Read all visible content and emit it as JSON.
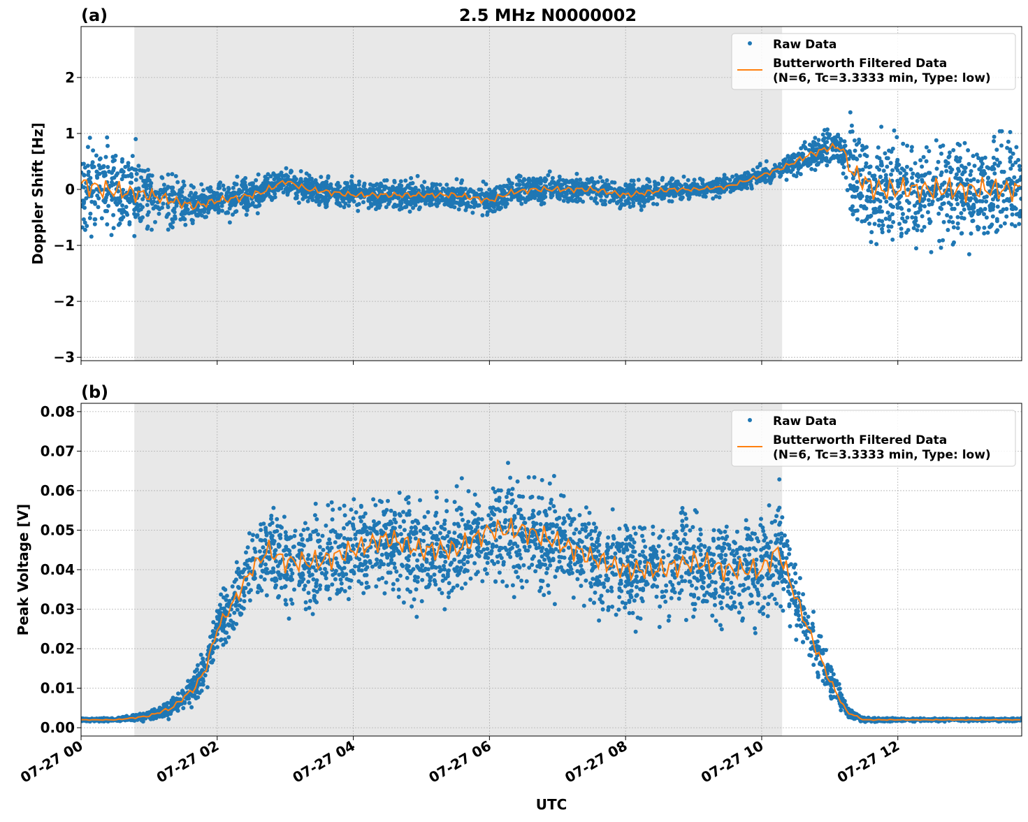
{
  "title": "2.5 MHz N0000002",
  "chart_data": [
    {
      "panel_label": "(a)",
      "type": "scatter",
      "ylabel": "Doppler Shift [Hz]",
      "xlabel": "",
      "ylim": [
        -3.06,
        2.91
      ],
      "yticks": [
        -3,
        -2,
        -1,
        0,
        1,
        2
      ],
      "ytick_labels": [
        "−3",
        "−2",
        "−1",
        "0",
        "1",
        "2"
      ],
      "grid": true,
      "legend_position": "top-right",
      "shaded_span": [
        "00:47",
        "10:18"
      ],
      "x_times": [
        "00:00",
        "00:20",
        "00:40",
        "01:00",
        "01:20",
        "01:40",
        "02:00",
        "02:20",
        "02:40",
        "03:00",
        "03:20",
        "03:40",
        "04:00",
        "04:30",
        "05:00",
        "05:30",
        "06:00",
        "06:20",
        "06:40",
        "07:00",
        "07:30",
        "08:00",
        "08:20",
        "08:40",
        "09:00",
        "09:30",
        "10:00",
        "10:20",
        "10:40",
        "11:00",
        "11:10",
        "11:20",
        "11:40",
        "12:00",
        "12:30",
        "13:00",
        "13:30",
        "13:49"
      ],
      "series": [
        {
          "name": "Raw Data",
          "kind": "scatter",
          "color": "#1f77b4",
          "spread": [
            1.0,
            1.0,
            1.0,
            0.7,
            0.6,
            0.45,
            0.4,
            0.4,
            0.35,
            0.3,
            0.3,
            0.3,
            0.3,
            0.3,
            0.3,
            0.3,
            0.35,
            0.3,
            0.3,
            0.3,
            0.3,
            0.3,
            0.3,
            0.25,
            0.2,
            0.2,
            0.2,
            0.25,
            0.35,
            0.4,
            0.4,
            1.1,
            1.2,
            1.2,
            1.2,
            1.2,
            1.2,
            1.2
          ]
        },
        {
          "name": "Butterworth Filtered Data\n(N=6, Tc=3.3333 min, Type: low)",
          "kind": "line",
          "color": "#ff7f0e",
          "values": [
            0.1,
            0.0,
            -0.05,
            -0.1,
            -0.2,
            -0.3,
            -0.2,
            -0.15,
            -0.05,
            0.15,
            0.0,
            -0.05,
            -0.1,
            -0.1,
            -0.1,
            -0.1,
            -0.2,
            -0.05,
            0.0,
            0.0,
            0.0,
            -0.1,
            -0.05,
            0.0,
            0.0,
            0.05,
            0.25,
            0.4,
            0.6,
            0.75,
            0.75,
            0.3,
            0.0,
            0.0,
            0.0,
            0.0,
            0.0,
            0.0
          ]
        }
      ]
    },
    {
      "panel_label": "(b)",
      "type": "scatter",
      "ylabel": "Peak Voltage [V]",
      "xlabel": "UTC",
      "ylim": [
        -0.0021,
        0.0821
      ],
      "yticks": [
        0,
        0.01,
        0.02,
        0.03,
        0.04,
        0.05,
        0.06,
        0.07,
        0.08
      ],
      "ytick_labels": [
        "0.00",
        "0.01",
        "0.02",
        "0.03",
        "0.04",
        "0.05",
        "0.06",
        "0.07",
        "0.08"
      ],
      "xtick_labels": [
        "07-27 00",
        "07-27 02",
        "07-27 04",
        "07-27 06",
        "07-27 08",
        "07-27 10",
        "07-27 12"
      ],
      "grid": true,
      "legend_position": "top-right",
      "shaded_span": [
        "00:47",
        "10:18"
      ],
      "x_times": [
        "00:00",
        "00:30",
        "00:47",
        "01:00",
        "01:20",
        "01:40",
        "01:50",
        "02:00",
        "02:15",
        "02:30",
        "02:45",
        "03:00",
        "03:30",
        "04:00",
        "04:30",
        "05:00",
        "05:30",
        "06:00",
        "06:30",
        "07:00",
        "07:30",
        "08:00",
        "08:30",
        "09:00",
        "09:30",
        "10:00",
        "10:15",
        "10:30",
        "10:45",
        "11:00",
        "11:15",
        "11:30",
        "12:00",
        "13:00",
        "13:49"
      ],
      "series": [
        {
          "name": "Raw Data",
          "kind": "scatter",
          "color": "#1f77b4",
          "spread": [
            0.0005,
            0.0005,
            0.001,
            0.0015,
            0.003,
            0.005,
            0.006,
            0.008,
            0.01,
            0.012,
            0.014,
            0.015,
            0.016,
            0.016,
            0.016,
            0.016,
            0.016,
            0.016,
            0.017,
            0.016,
            0.016,
            0.016,
            0.016,
            0.017,
            0.017,
            0.016,
            0.016,
            0.012,
            0.009,
            0.006,
            0.002,
            0.0008,
            0.0005,
            0.0005,
            0.0005
          ]
        },
        {
          "name": "Butterworth Filtered Data\n(N=6, Tc=3.3333 min, Type: low)",
          "kind": "line",
          "color": "#ff7f0e",
          "values": [
            0.002,
            0.002,
            0.0025,
            0.003,
            0.005,
            0.01,
            0.015,
            0.025,
            0.032,
            0.04,
            0.045,
            0.042,
            0.042,
            0.045,
            0.048,
            0.045,
            0.045,
            0.05,
            0.05,
            0.047,
            0.043,
            0.04,
            0.04,
            0.042,
            0.04,
            0.04,
            0.045,
            0.033,
            0.022,
            0.012,
            0.004,
            0.002,
            0.002,
            0.002,
            0.002
          ]
        }
      ]
    }
  ]
}
